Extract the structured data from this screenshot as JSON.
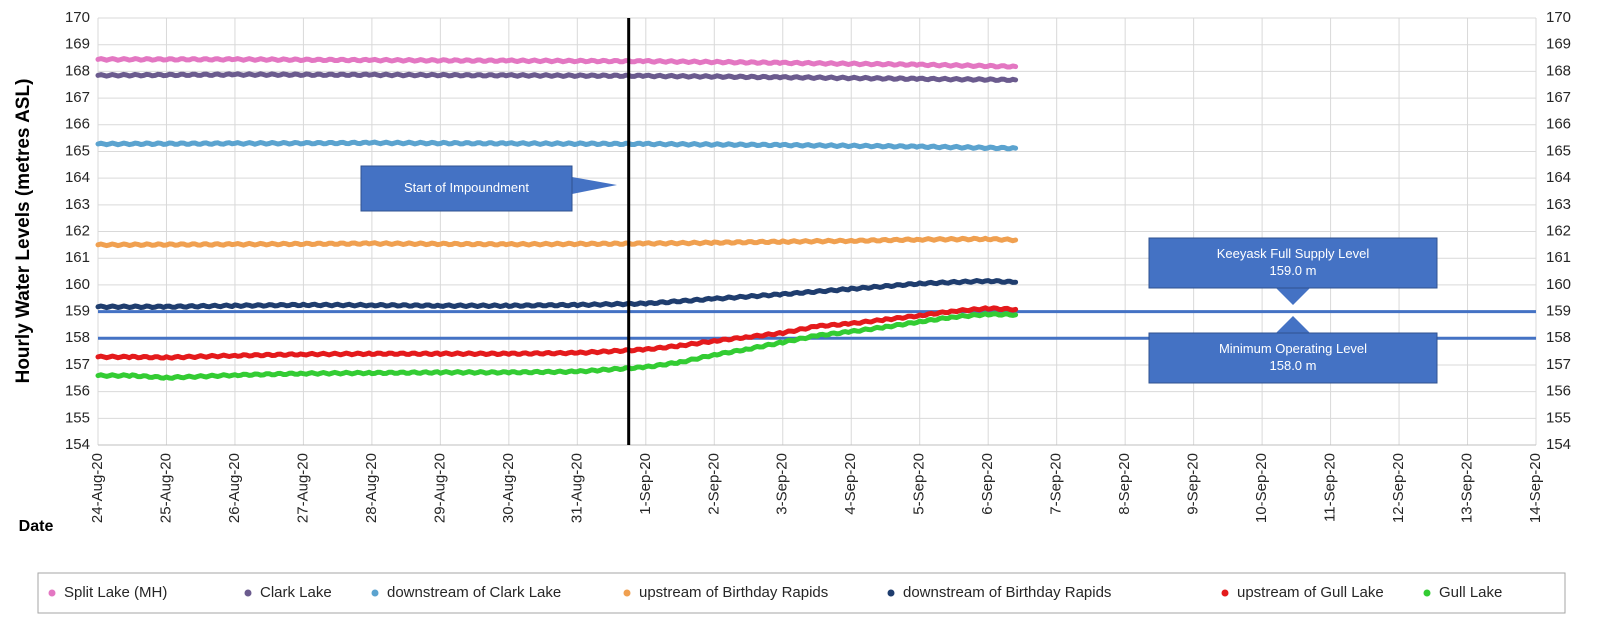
{
  "chart_data": {
    "type": "line",
    "title": "",
    "ylabel": "Hourly Water Levels (metres ASL)",
    "xlabel": "Date",
    "ylim": [
      154,
      170
    ],
    "yticks": [
      154,
      155,
      156,
      157,
      158,
      159,
      160,
      161,
      162,
      163,
      164,
      165,
      166,
      167,
      168,
      169,
      170
    ],
    "x_categories": [
      "24-Aug-20",
      "25-Aug-20",
      "26-Aug-20",
      "27-Aug-20",
      "28-Aug-20",
      "29-Aug-20",
      "30-Aug-20",
      "31-Aug-20",
      "1-Sep-20",
      "2-Sep-20",
      "3-Sep-20",
      "4-Sep-20",
      "5-Sep-20",
      "6-Sep-20",
      "7-Sep-20",
      "8-Sep-20",
      "9-Sep-20",
      "10-Sep-20",
      "11-Sep-20",
      "12-Sep-20",
      "13-Sep-20",
      "14-Sep-20"
    ],
    "grid": true,
    "legend_position": "bottom",
    "series": [
      {
        "name": "Split Lake (MH)",
        "color": "#e377c2",
        "points": [
          [
            0,
            168.45
          ],
          [
            2,
            168.45
          ],
          [
            4,
            168.42
          ],
          [
            6,
            168.4
          ],
          [
            8,
            168.38
          ],
          [
            10,
            168.32
          ],
          [
            12,
            168.25
          ],
          [
            13.4,
            168.18
          ]
        ]
      },
      {
        "name": "Clark Lake",
        "color": "#6b5b8e",
        "points": [
          [
            0,
            167.85
          ],
          [
            2,
            167.88
          ],
          [
            4,
            167.87
          ],
          [
            6,
            167.85
          ],
          [
            8,
            167.83
          ],
          [
            10,
            167.78
          ],
          [
            12,
            167.72
          ],
          [
            13.4,
            167.68
          ]
        ]
      },
      {
        "name": "downstream of Clark Lake",
        "color": "#5ba3cf",
        "points": [
          [
            0,
            165.28
          ],
          [
            2,
            165.3
          ],
          [
            4,
            165.32
          ],
          [
            6,
            165.3
          ],
          [
            8,
            165.28
          ],
          [
            10,
            165.24
          ],
          [
            12,
            165.18
          ],
          [
            13.4,
            165.12
          ]
        ]
      },
      {
        "name": "upstream of Birthday Rapids",
        "color": "#f0a050",
        "points": [
          [
            0,
            161.5
          ],
          [
            2,
            161.52
          ],
          [
            4,
            161.55
          ],
          [
            6,
            161.52
          ],
          [
            8,
            161.55
          ],
          [
            9,
            161.58
          ],
          [
            10,
            161.62
          ],
          [
            11,
            161.65
          ],
          [
            12,
            161.7
          ],
          [
            13,
            161.72
          ],
          [
            13.4,
            161.68
          ]
        ]
      },
      {
        "name": "downstream of Birthday Rapids",
        "color": "#1f3d6e",
        "points": [
          [
            0,
            159.18
          ],
          [
            1,
            159.18
          ],
          [
            2,
            159.22
          ],
          [
            3,
            159.25
          ],
          [
            4,
            159.24
          ],
          [
            5,
            159.22
          ],
          [
            6,
            159.22
          ],
          [
            7,
            159.25
          ],
          [
            8,
            159.3
          ],
          [
            9,
            159.48
          ],
          [
            10,
            159.65
          ],
          [
            11,
            159.85
          ],
          [
            12,
            160.05
          ],
          [
            13,
            160.15
          ],
          [
            13.4,
            160.1
          ]
        ]
      },
      {
        "name": "upstream of Gull Lake",
        "color": "#e41a1c",
        "points": [
          [
            0,
            157.3
          ],
          [
            0.5,
            157.3
          ],
          [
            1,
            157.28
          ],
          [
            2,
            157.35
          ],
          [
            3,
            157.4
          ],
          [
            4,
            157.42
          ],
          [
            5,
            157.42
          ],
          [
            6,
            157.42
          ],
          [
            7,
            157.45
          ],
          [
            8,
            157.58
          ],
          [
            8.5,
            157.72
          ],
          [
            9,
            157.9
          ],
          [
            9.5,
            158.05
          ],
          [
            10,
            158.2
          ],
          [
            10.5,
            158.45
          ],
          [
            11,
            158.55
          ],
          [
            11.5,
            158.7
          ],
          [
            12,
            158.85
          ],
          [
            12.5,
            159.02
          ],
          [
            13,
            159.12
          ],
          [
            13.4,
            159.08
          ]
        ]
      },
      {
        "name": "Gull Lake",
        "color": "#33cc33",
        "points": [
          [
            0,
            156.6
          ],
          [
            0.5,
            156.6
          ],
          [
            1,
            156.52
          ],
          [
            2,
            156.62
          ],
          [
            3,
            156.68
          ],
          [
            4,
            156.7
          ],
          [
            5,
            156.72
          ],
          [
            6,
            156.72
          ],
          [
            7,
            156.75
          ],
          [
            8,
            156.92
          ],
          [
            8.5,
            157.1
          ],
          [
            9,
            157.38
          ],
          [
            9.5,
            157.6
          ],
          [
            10,
            157.85
          ],
          [
            10.5,
            158.1
          ],
          [
            11,
            158.25
          ],
          [
            11.5,
            158.42
          ],
          [
            12,
            158.62
          ],
          [
            12.5,
            158.8
          ],
          [
            13,
            158.9
          ],
          [
            13.4,
            158.88
          ]
        ]
      }
    ],
    "reference_lines": [
      {
        "value": 159.0,
        "color": "#4472c4"
      },
      {
        "value": 158.0,
        "color": "#4472c4"
      }
    ],
    "event_line": {
      "x": 7.75,
      "color": "#000000"
    },
    "annotations": [
      {
        "text": [
          "Start of Impoundment"
        ],
        "fill": "#4472c4"
      },
      {
        "text": [
          "Keeyask Full Supply Level",
          "159.0 m"
        ],
        "fill": "#4472c4"
      },
      {
        "text": [
          "Minimum Operating Level",
          "158.0 m"
        ],
        "fill": "#4472c4"
      }
    ]
  }
}
